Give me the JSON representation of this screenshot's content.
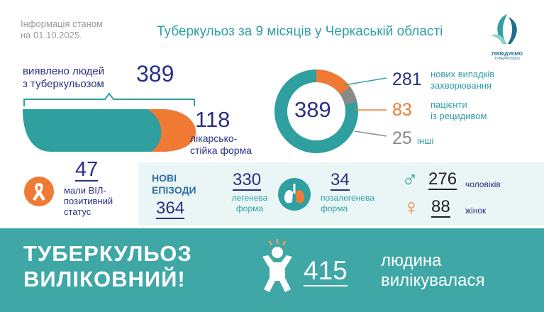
{
  "header": {
    "info_line1": "Інформація станом",
    "info_line2": "на 01.10.2025.",
    "title": "Туберкульоз за 9 місяців у Черкаській області",
    "logo_text1": "ЛІКВІДУЄМО",
    "logo_text2": "ТУБЕРКУЛЬОЗ"
  },
  "detected": {
    "label_line1": "виявлено людей",
    "label_line2": "з туберкульозом",
    "value": "389"
  },
  "resistant": {
    "value": "118",
    "label_line1": "лікарсько-",
    "label_line2": "стійка форма"
  },
  "donut": {
    "center_value": "389",
    "items": [
      {
        "value": "281",
        "label_line1": "нових випадків",
        "label_line2": "захворювання",
        "color": "#2f9fa0"
      },
      {
        "value": "83",
        "label_line1": "пацієнти",
        "label_line2": "із рецидивом",
        "color": "#f07a34"
      },
      {
        "value": "25",
        "label_line1": "інші",
        "label_line2": "",
        "color": "#8a8a8a"
      }
    ]
  },
  "hiv": {
    "value": "47",
    "label_line1": "мали ВІЛ-",
    "label_line2": "позитивний",
    "label_line3": "статус"
  },
  "new_episodes": {
    "title_line1": "НОВІ",
    "title_line2": "ЕПІЗОДИ",
    "value": "364"
  },
  "pulmonary": {
    "value": "330",
    "label_line1": "легенева",
    "label_line2": "форма"
  },
  "extrapulmonary": {
    "value": "34",
    "label_line1": "позалегенева",
    "label_line2": "форма"
  },
  "gender": {
    "male_value": "276",
    "male_label": "чоловіків",
    "female_value": "88",
    "female_label": "жінок",
    "male_color": "#2f9fa0",
    "female_color": "#f07a34"
  },
  "footer": {
    "slogan_line1": "ТУБЕРКУЛЬОЗ",
    "slogan_line2": "ВИЛІКОВНИЙ!",
    "value": "415",
    "label_line1": "людина",
    "label_line2": "вилікувалася"
  }
}
